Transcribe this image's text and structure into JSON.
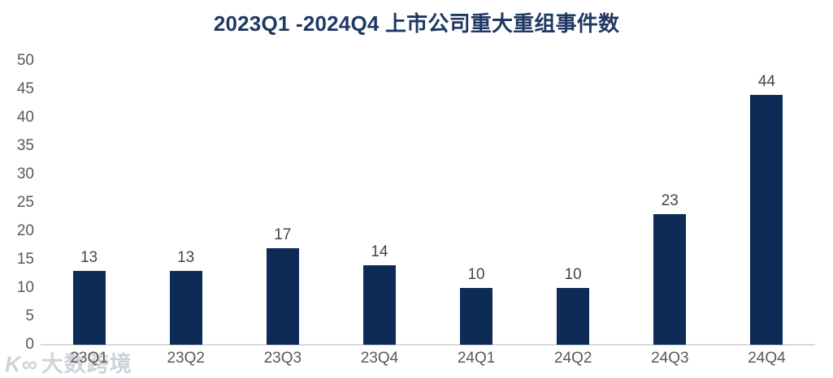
{
  "title": "2023Q1 -2024Q4 上市公司重大重组事件数",
  "colors": {
    "title": "#1F3864",
    "bar": "#0E2A57",
    "axis_line": "#D9D9D9",
    "tick_label": "#595959",
    "value_label": "#454545",
    "watermark": "#CFD3D8",
    "background": "#FFFFFF"
  },
  "watermark": {
    "logo": "K∞",
    "text": "大数跨境"
  },
  "chart_data": {
    "type": "bar",
    "title": "2023Q1 -2024Q4 上市公司重大重组事件数",
    "categories": [
      "23Q1",
      "23Q2",
      "23Q3",
      "23Q4",
      "24Q1",
      "24Q2",
      "24Q3",
      "24Q4"
    ],
    "values": [
      13,
      13,
      17,
      14,
      10,
      10,
      23,
      44
    ],
    "xlabel": "",
    "ylabel": "",
    "ylim": [
      0,
      50
    ],
    "yticks": [
      0,
      5,
      10,
      15,
      20,
      25,
      30,
      35,
      40,
      45,
      50
    ],
    "grid": false,
    "legend": false,
    "value_labels": true,
    "bar_color": "#0E2A57"
  }
}
